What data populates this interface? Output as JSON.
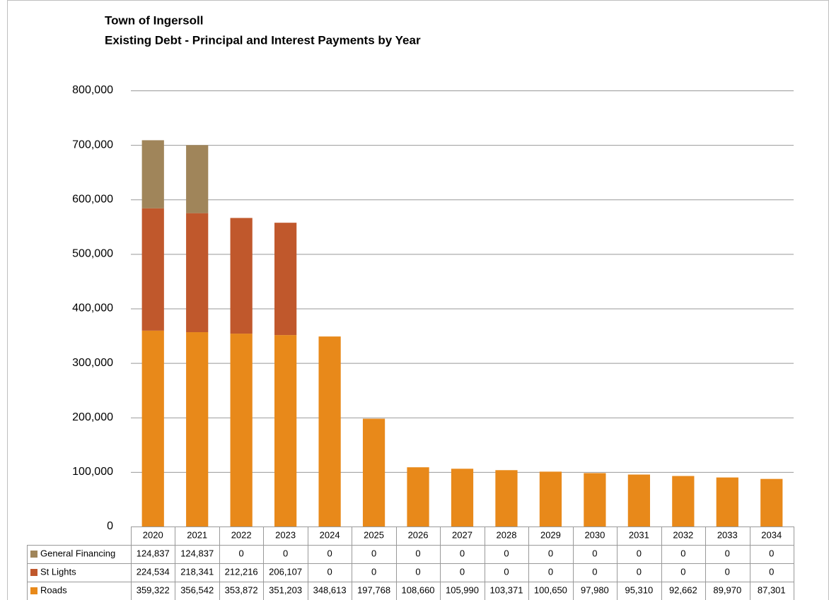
{
  "chart_data": {
    "type": "bar",
    "stacked": true,
    "title": "Town of Ingersoll",
    "subtitle": "Existing Debt - Principal and Interest Payments by Year",
    "categories": [
      "2020",
      "2021",
      "2022",
      "2023",
      "2024",
      "2025",
      "2026",
      "2027",
      "2028",
      "2029",
      "2030",
      "2031",
      "2032",
      "2033",
      "2034"
    ],
    "series": [
      {
        "name": "General Financing",
        "color": "#a0855a",
        "values": [
          124837,
          124837,
          0,
          0,
          0,
          0,
          0,
          0,
          0,
          0,
          0,
          0,
          0,
          0,
          0
        ],
        "value_labels": [
          "124,837",
          "124,837",
          "0",
          "0",
          "0",
          "0",
          "0",
          "0",
          "0",
          "0",
          "0",
          "0",
          "0",
          "0",
          "0"
        ]
      },
      {
        "name": "St Lights",
        "color": "#c0582c",
        "values": [
          224534,
          218341,
          212216,
          206107,
          0,
          0,
          0,
          0,
          0,
          0,
          0,
          0,
          0,
          0,
          0
        ],
        "value_labels": [
          "224,534",
          "218,341",
          "212,216",
          "206,107",
          "0",
          "0",
          "0",
          "0",
          "0",
          "0",
          "0",
          "0",
          "0",
          "0",
          "0"
        ]
      },
      {
        "name": "Roads",
        "color": "#e8891a",
        "values": [
          359322,
          356542,
          353872,
          351203,
          348613,
          197768,
          108660,
          105990,
          103371,
          100650,
          97980,
          95310,
          92662,
          89970,
          87301
        ],
        "value_labels": [
          "359,322",
          "356,542",
          "353,872",
          "351,203",
          "348,613",
          "197,768",
          "108,660",
          "105,990",
          "103,371",
          "100,650",
          "97,980",
          "95,310",
          "92,662",
          "89,970",
          "87,301"
        ]
      }
    ],
    "ylim": [
      0,
      800000
    ],
    "yticks": [
      0,
      {
        "value": 100000,
        "label": "100,000"
      },
      {
        "value": 200000,
        "label": "200,000"
      },
      {
        "value": 300000,
        "label": "300,000"
      },
      {
        "value": 400000,
        "label": "400,000"
      },
      {
        "value": 500000,
        "label": "500,000"
      },
      {
        "value": 600000,
        "label": "600,000"
      },
      {
        "value": 700000,
        "label": "700,000"
      },
      {
        "value": 800000,
        "label": "800,000"
      }
    ],
    "grid": true
  }
}
